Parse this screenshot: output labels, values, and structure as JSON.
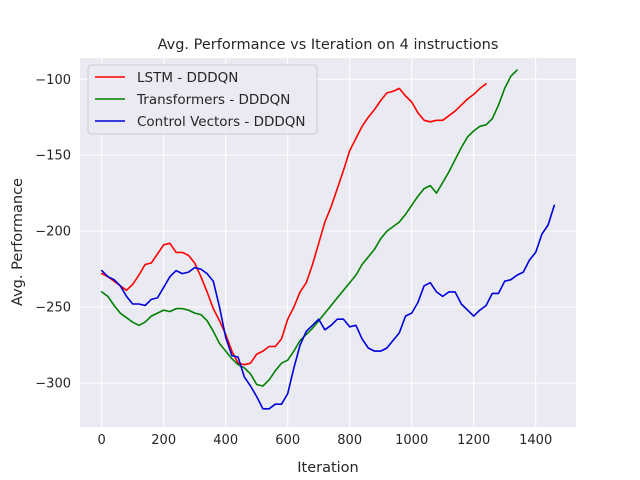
{
  "chart_data": {
    "type": "line",
    "title": "Avg. Performance vs Iteration on 4 instructions",
    "xlabel": "Iteration",
    "ylabel": "Avg. Performance",
    "xlim": [
      -70,
      1530
    ],
    "ylim": [
      -329,
      -86
    ],
    "xticks": [
      0,
      200,
      400,
      600,
      800,
      1000,
      1200,
      1400
    ],
    "yticks": [
      -300,
      -250,
      -200,
      -150,
      -100
    ],
    "grid": true,
    "legend_position": "top-left",
    "series": [
      {
        "name": "LSTM - DDDQN",
        "color": "#ff0000",
        "x": [
          0,
          20,
          40,
          60,
          80,
          100,
          120,
          140,
          160,
          180,
          200,
          220,
          240,
          260,
          280,
          300,
          320,
          340,
          360,
          380,
          400,
          420,
          440,
          460,
          480,
          500,
          520,
          540,
          560,
          580,
          600,
          620,
          640,
          660,
          680,
          700,
          720,
          740,
          760,
          780,
          800,
          820,
          840,
          860,
          880,
          900,
          920,
          940,
          960,
          980,
          1000,
          1020,
          1040,
          1060,
          1080,
          1100,
          1120,
          1140,
          1160,
          1180,
          1200,
          1220,
          1240
        ],
        "y": [
          -228,
          -230,
          -233,
          -236,
          -239,
          -235,
          -229,
          -222,
          -221,
          -215,
          -209,
          -208,
          -214,
          -214,
          -216,
          -221,
          -230,
          -240,
          -251,
          -259,
          -268,
          -279,
          -287,
          -288,
          -287,
          -281,
          -279,
          -276,
          -276,
          -271,
          -258,
          -250,
          -240,
          -234,
          -222,
          -208,
          -194,
          -184,
          -172,
          -160,
          -147,
          -139,
          -131,
          -125,
          -120,
          -114,
          -109,
          -108,
          -106,
          -111,
          -115,
          -122,
          -127,
          -128,
          -127,
          -127,
          -124,
          -121,
          -117,
          -113,
          -110,
          -106,
          -103
        ]
      },
      {
        "name": "Transformers - DDDQN",
        "color": "#008000",
        "x": [
          0,
          20,
          40,
          60,
          80,
          100,
          120,
          140,
          160,
          180,
          200,
          220,
          240,
          260,
          280,
          300,
          320,
          340,
          360,
          380,
          400,
          420,
          440,
          460,
          480,
          500,
          520,
          540,
          560,
          580,
          600,
          620,
          640,
          660,
          680,
          700,
          720,
          740,
          760,
          780,
          800,
          820,
          840,
          860,
          880,
          900,
          920,
          940,
          960,
          980,
          1000,
          1020,
          1040,
          1060,
          1080,
          1100,
          1120,
          1140,
          1160,
          1180,
          1200,
          1220,
          1240,
          1260,
          1280,
          1300,
          1320,
          1340
        ],
        "y": [
          -240,
          -243,
          -249,
          -254,
          -257,
          -260,
          -262,
          -260,
          -256,
          -254,
          -252,
          -253,
          -251,
          -251,
          -252,
          -254,
          -255,
          -259,
          -266,
          -274,
          -279,
          -284,
          -288,
          -290,
          -294,
          -301,
          -302,
          -298,
          -292,
          -287,
          -285,
          -279,
          -272,
          -268,
          -264,
          -259,
          -254,
          -249,
          -244,
          -239,
          -234,
          -229,
          -222,
          -217,
          -212,
          -205,
          -200,
          -197,
          -194,
          -189,
          -183,
          -177,
          -172,
          -170,
          -175,
          -168,
          -161,
          -153,
          -145,
          -138,
          -134,
          -131,
          -130,
          -126,
          -117,
          -106,
          -98,
          -94
        ]
      },
      {
        "name": "Control Vectors - DDDQN",
        "color": "#0000dd",
        "x": [
          0,
          20,
          40,
          60,
          80,
          100,
          120,
          140,
          160,
          180,
          200,
          220,
          240,
          260,
          280,
          300,
          320,
          340,
          360,
          380,
          400,
          420,
          440,
          460,
          480,
          500,
          520,
          540,
          560,
          580,
          600,
          620,
          640,
          660,
          680,
          700,
          720,
          740,
          760,
          780,
          800,
          820,
          840,
          860,
          880,
          900,
          920,
          940,
          960,
          980,
          1000,
          1020,
          1040,
          1060,
          1080,
          1100,
          1120,
          1140,
          1160,
          1180,
          1200,
          1220,
          1240,
          1260,
          1280,
          1300,
          1320,
          1340,
          1360,
          1380,
          1400,
          1420,
          1440,
          1460
        ],
        "y": [
          -226,
          -230,
          -232,
          -236,
          -243,
          -248,
          -248,
          -249,
          -245,
          -244,
          -237,
          -230,
          -226,
          -228,
          -227,
          -224,
          -225,
          -228,
          -233,
          -250,
          -270,
          -282,
          -283,
          -296,
          -302,
          -309,
          -317,
          -317,
          -314,
          -314,
          -307,
          -290,
          -275,
          -266,
          -262,
          -258,
          -265,
          -262,
          -258,
          -258,
          -263,
          -262,
          -271,
          -277,
          -279,
          -279,
          -277,
          -272,
          -267,
          -256,
          -254,
          -247,
          -236,
          -234,
          -240,
          -243,
          -240,
          -240,
          -248,
          -252,
          -256,
          -252,
          -249,
          -241,
          -241,
          -233,
          -232,
          -229,
          -227,
          -219,
          -214,
          -202,
          -196,
          -183
        ]
      }
    ]
  }
}
